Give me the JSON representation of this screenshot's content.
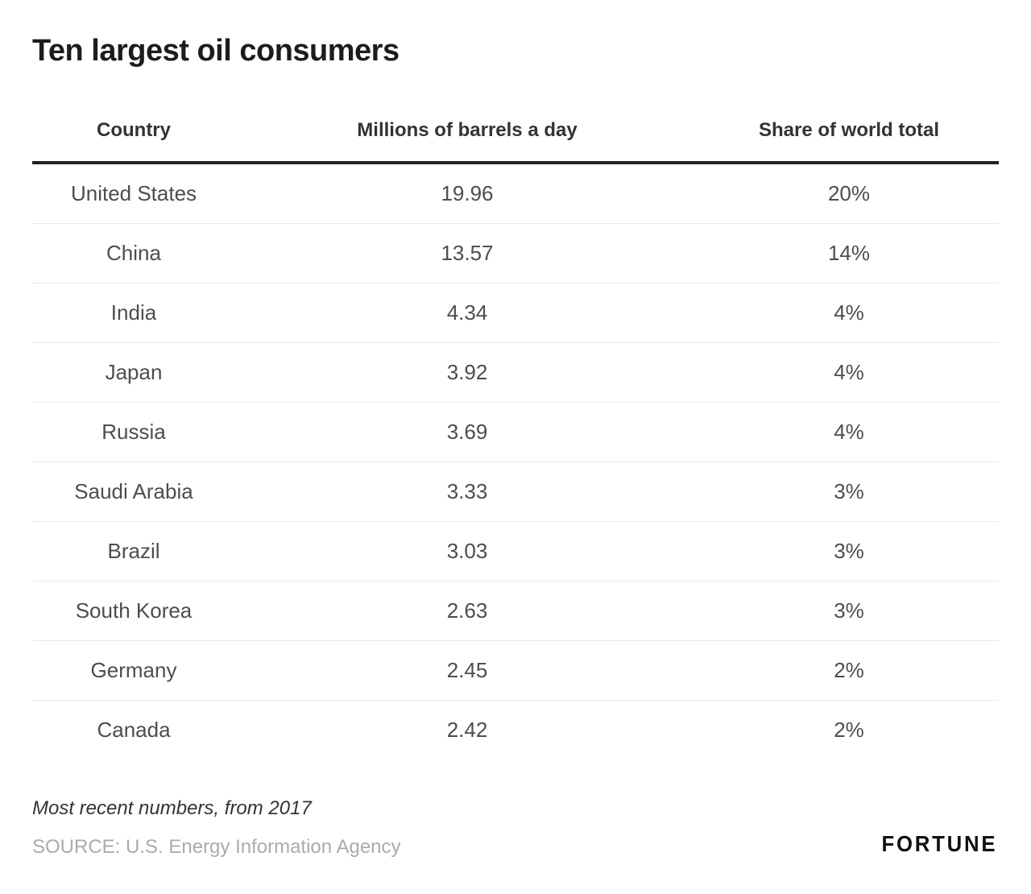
{
  "chart_data": {
    "type": "table",
    "title": "Ten largest oil consumers",
    "columns": [
      "Country",
      "Millions of barrels a day",
      "Share of world total"
    ],
    "rows": [
      {
        "country": "United States",
        "barrels": "19.96",
        "share": "20%"
      },
      {
        "country": "China",
        "barrels": "13.57",
        "share": "14%"
      },
      {
        "country": "India",
        "barrels": "4.34",
        "share": "4%"
      },
      {
        "country": "Japan",
        "barrels": "3.92",
        "share": "4%"
      },
      {
        "country": "Russia",
        "barrels": "3.69",
        "share": "4%"
      },
      {
        "country": "Saudi Arabia",
        "barrels": "3.33",
        "share": "3%"
      },
      {
        "country": "Brazil",
        "barrels": "3.03",
        "share": "3%"
      },
      {
        "country": "South Korea",
        "barrels": "2.63",
        "share": "3%"
      },
      {
        "country": "Germany",
        "barrels": "2.45",
        "share": "2%"
      },
      {
        "country": "Canada",
        "barrels": "2.42",
        "share": "2%"
      }
    ],
    "note": "Most recent numbers, from 2017",
    "source": "SOURCE: U.S. Energy Information Agency",
    "brand": "FORTUNE",
    "layout": {
      "grid": "off",
      "header_rule_color": "#222222",
      "row_rule_color": "#e8e8e8",
      "title_color": "#1c1c1c",
      "body_text_color": "#4d4d4d",
      "source_text_color": "#ababab"
    }
  }
}
